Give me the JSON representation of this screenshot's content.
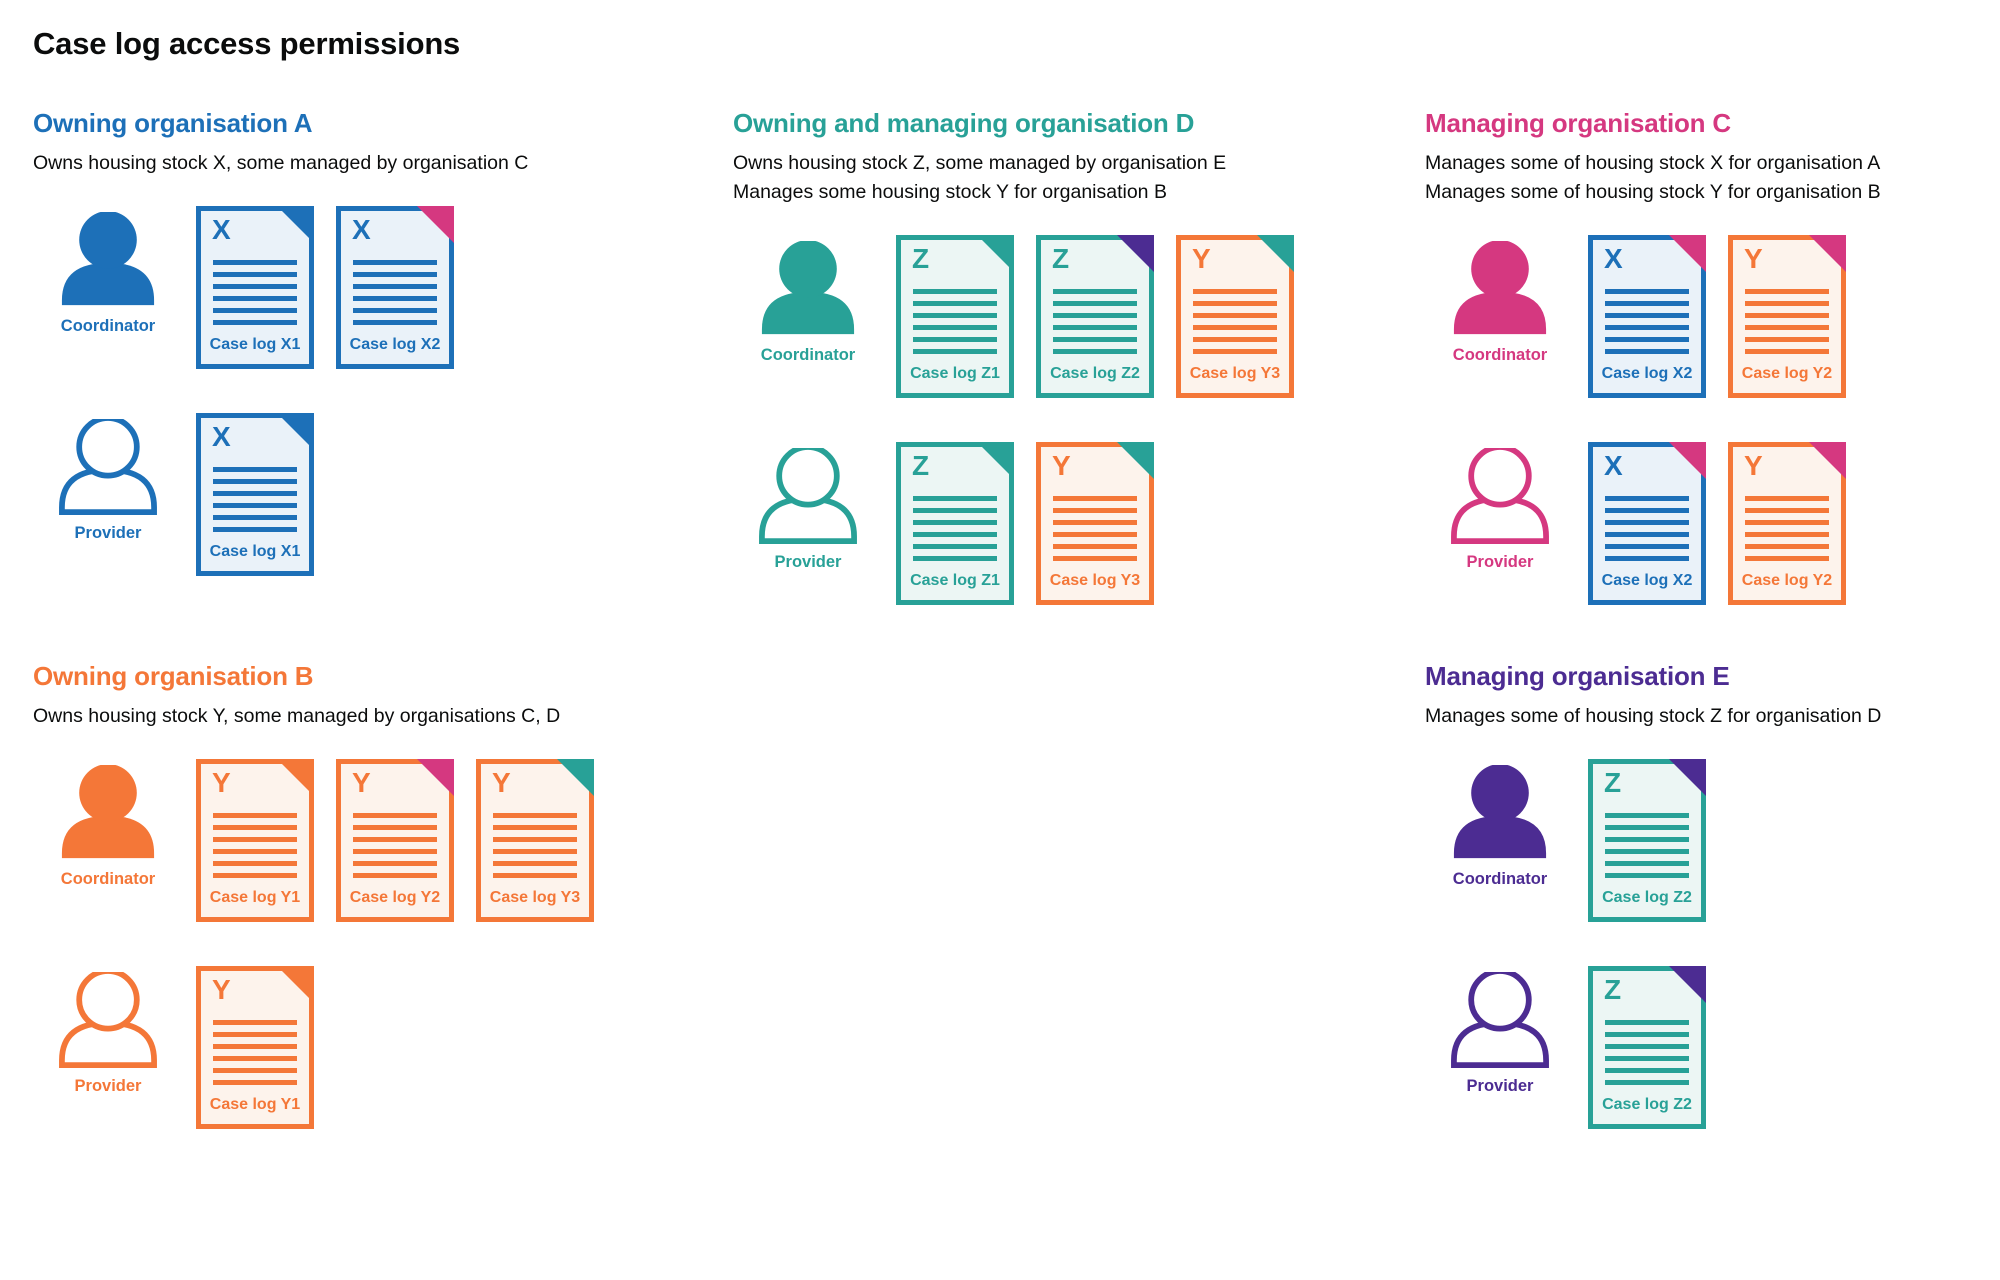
{
  "page": {
    "title": "Case log access permissions"
  },
  "colors": {
    "blue": "#1d70b8",
    "teal": "#28a197",
    "orange": "#f47738",
    "pink": "#d53880",
    "purple": "#4c2c92",
    "text": "#0b0c0c"
  },
  "tints": {
    "blue": "#eaf2f9",
    "teal": "#ecf6f4",
    "orange": "#fdf3ec"
  },
  "sections": [
    {
      "key": "a",
      "heading": "Owning organisation A",
      "color": "blue",
      "description": [
        "Owns housing stock X, some managed by organisation C"
      ],
      "grid": {
        "col": 1,
        "row": 1
      },
      "rows": [
        {
          "role_label": "Coordinator",
          "person": "filled",
          "docs": [
            {
              "letter": "X",
              "label": "Case log X1",
              "color": "blue",
              "fold": "blue"
            },
            {
              "letter": "X",
              "label": "Case log X2",
              "color": "blue",
              "fold": "pink"
            }
          ]
        },
        {
          "role_label": "Provider",
          "person": "outline",
          "docs": [
            {
              "letter": "X",
              "label": "Case log X1",
              "color": "blue",
              "fold": "blue"
            }
          ]
        }
      ]
    },
    {
      "key": "d",
      "heading": "Owning and managing organisation D",
      "color": "teal",
      "description": [
        "Owns housing stock Z, some managed by organisation E",
        "Manages some housing stock Y for organisation B"
      ],
      "grid": {
        "col": 2,
        "row": 1
      },
      "rows": [
        {
          "role_label": "Coordinator",
          "person": "filled",
          "docs": [
            {
              "letter": "Z",
              "label": "Case log Z1",
              "color": "teal",
              "fold": "teal"
            },
            {
              "letter": "Z",
              "label": "Case log Z2",
              "color": "teal",
              "fold": "purple"
            },
            {
              "letter": "Y",
              "label": "Case log Y3",
              "color": "orange",
              "fold": "teal"
            }
          ]
        },
        {
          "role_label": "Provider",
          "person": "outline",
          "docs": [
            {
              "letter": "Z",
              "label": "Case log Z1",
              "color": "teal",
              "fold": "teal"
            },
            {
              "letter": "Y",
              "label": "Case log Y3",
              "color": "orange",
              "fold": "teal"
            }
          ]
        }
      ]
    },
    {
      "key": "c",
      "heading": "Managing organisation C",
      "color": "pink",
      "description": [
        "Manages some of housing stock X for organisation A",
        "Manages some of housing stock Y for organisation B"
      ],
      "grid": {
        "col": 3,
        "row": 1
      },
      "rows": [
        {
          "role_label": "Coordinator",
          "person": "filled",
          "docs": [
            {
              "letter": "X",
              "label": "Case log X2",
              "color": "blue",
              "fold": "pink"
            },
            {
              "letter": "Y",
              "label": "Case log Y2",
              "color": "orange",
              "fold": "pink"
            }
          ]
        },
        {
          "role_label": "Provider",
          "person": "outline",
          "docs": [
            {
              "letter": "X",
              "label": "Case log X2",
              "color": "blue",
              "fold": "pink"
            },
            {
              "letter": "Y",
              "label": "Case log Y2",
              "color": "orange",
              "fold": "pink"
            }
          ]
        }
      ]
    },
    {
      "key": "b",
      "heading": "Owning organisation B",
      "color": "orange",
      "description": [
        "Owns housing stock Y, some managed by organisations C, D"
      ],
      "grid": {
        "col": 1,
        "row": 2
      },
      "rows": [
        {
          "role_label": "Coordinator",
          "person": "filled",
          "docs": [
            {
              "letter": "Y",
              "label": "Case log Y1",
              "color": "orange",
              "fold": "orange"
            },
            {
              "letter": "Y",
              "label": "Case log Y2",
              "color": "orange",
              "fold": "pink"
            },
            {
              "letter": "Y",
              "label": "Case log Y3",
              "color": "orange",
              "fold": "teal"
            }
          ]
        },
        {
          "role_label": "Provider",
          "person": "outline",
          "docs": [
            {
              "letter": "Y",
              "label": "Case log Y1",
              "color": "orange",
              "fold": "orange"
            }
          ]
        }
      ]
    },
    {
      "key": "e",
      "heading": "Managing organisation E",
      "color": "purple",
      "description": [
        "Manages some of housing stock Z for organisation D"
      ],
      "grid": {
        "col": 3,
        "row": 2
      },
      "rows": [
        {
          "role_label": "Coordinator",
          "person": "filled",
          "docs": [
            {
              "letter": "Z",
              "label": "Case log Z2",
              "color": "teal",
              "fold": "purple"
            }
          ]
        },
        {
          "role_label": "Provider",
          "person": "outline",
          "docs": [
            {
              "letter": "Z",
              "label": "Case log Z2",
              "color": "teal",
              "fold": "purple"
            }
          ]
        }
      ]
    }
  ]
}
